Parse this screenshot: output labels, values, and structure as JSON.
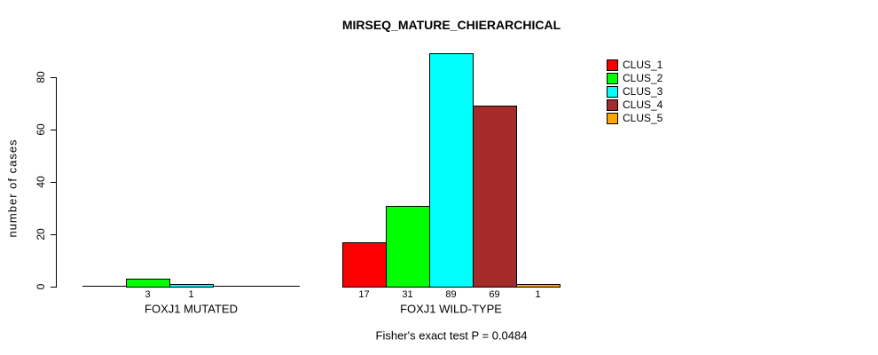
{
  "title": "MIRSEQ_MATURE_CHIERARCHICAL",
  "annotation": "Fisher's exact test P = 0.0484",
  "chart_data": {
    "type": "bar",
    "title": "MIRSEQ_MATURE_CHIERARCHICAL",
    "ylabel": "number of cases",
    "xlabel": "",
    "annotation": "Fisher's exact test P = 0.0484",
    "categories": [
      "FOXJ1 MUTATED",
      "FOXJ1 WILD-TYPE"
    ],
    "series": [
      {
        "name": "CLUS_1",
        "color": "#ff0000",
        "values": [
          0,
          17
        ]
      },
      {
        "name": "CLUS_2",
        "color": "#00ff00",
        "values": [
          3,
          31
        ]
      },
      {
        "name": "CLUS_3",
        "color": "#00ffff",
        "values": [
          1,
          89
        ]
      },
      {
        "name": "CLUS_4",
        "color": "#a52a2a",
        "values": [
          0,
          69
        ]
      },
      {
        "name": "CLUS_5",
        "color": "#ffa500",
        "values": [
          0,
          1
        ]
      }
    ],
    "bar_value_labels": [
      [
        "",
        "3",
        "1",
        "",
        ""
      ],
      [
        "17",
        "31",
        "89",
        "69",
        "1"
      ]
    ],
    "yticks": [
      0,
      20,
      40,
      60,
      80
    ],
    "ylim": [
      0,
      89
    ],
    "grid": false,
    "legend_position": "top-right",
    "legend_entries": [
      "CLUS_1",
      "CLUS_2",
      "CLUS_3",
      "CLUS_4",
      "CLUS_5"
    ],
    "axis_color": "#000000",
    "background": "#ffffff"
  }
}
